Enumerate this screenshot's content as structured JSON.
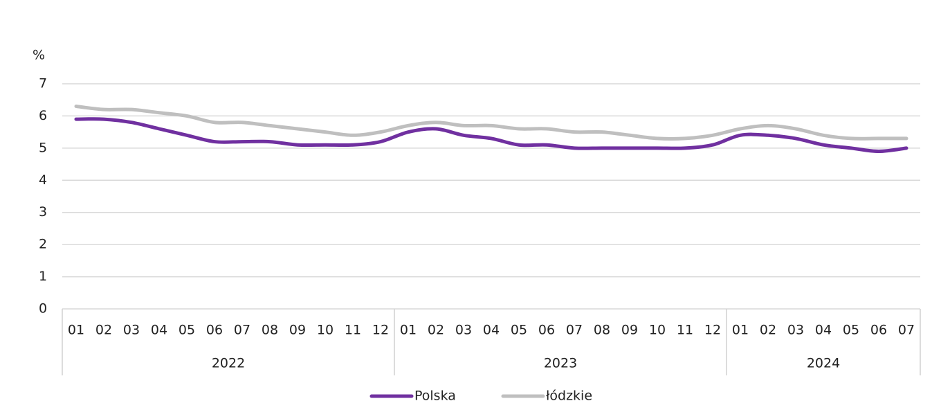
{
  "chart_data": {
    "type": "line",
    "y_unit_label": "%",
    "groups": [
      {
        "label": "2022",
        "categories": [
          "01",
          "02",
          "03",
          "04",
          "05",
          "06",
          "07",
          "08",
          "09",
          "10",
          "11",
          "12"
        ]
      },
      {
        "label": "2023",
        "categories": [
          "01",
          "02",
          "03",
          "04",
          "05",
          "06",
          "07",
          "08",
          "09",
          "10",
          "11",
          "12"
        ]
      },
      {
        "label": "2024",
        "categories": [
          "01",
          "02",
          "03",
          "04",
          "05",
          "06",
          "07"
        ]
      }
    ],
    "series": [
      {
        "name": "Polska",
        "color": "#7030a0",
        "values": [
          5.9,
          5.9,
          5.8,
          5.6,
          5.4,
          5.2,
          5.2,
          5.2,
          5.1,
          5.1,
          5.1,
          5.2,
          5.5,
          5.6,
          5.4,
          5.3,
          5.1,
          5.1,
          5.0,
          5.0,
          5.0,
          5.0,
          5.0,
          5.1,
          5.4,
          5.4,
          5.3,
          5.1,
          5.0,
          4.9,
          5.0
        ]
      },
      {
        "name": "łódzkie",
        "color": "#bfbfbf",
        "values": [
          6.3,
          6.2,
          6.2,
          6.1,
          6.0,
          5.8,
          5.8,
          5.7,
          5.6,
          5.5,
          5.4,
          5.5,
          5.7,
          5.8,
          5.7,
          5.7,
          5.6,
          5.6,
          5.5,
          5.5,
          5.4,
          5.3,
          5.3,
          5.4,
          5.6,
          5.7,
          5.6,
          5.4,
          5.3,
          5.3,
          5.3
        ]
      }
    ],
    "ylim": [
      0,
      7
    ],
    "yticks": [
      0,
      1,
      2,
      3,
      4,
      5,
      6,
      7
    ],
    "grid": true,
    "legend": "bottom"
  }
}
